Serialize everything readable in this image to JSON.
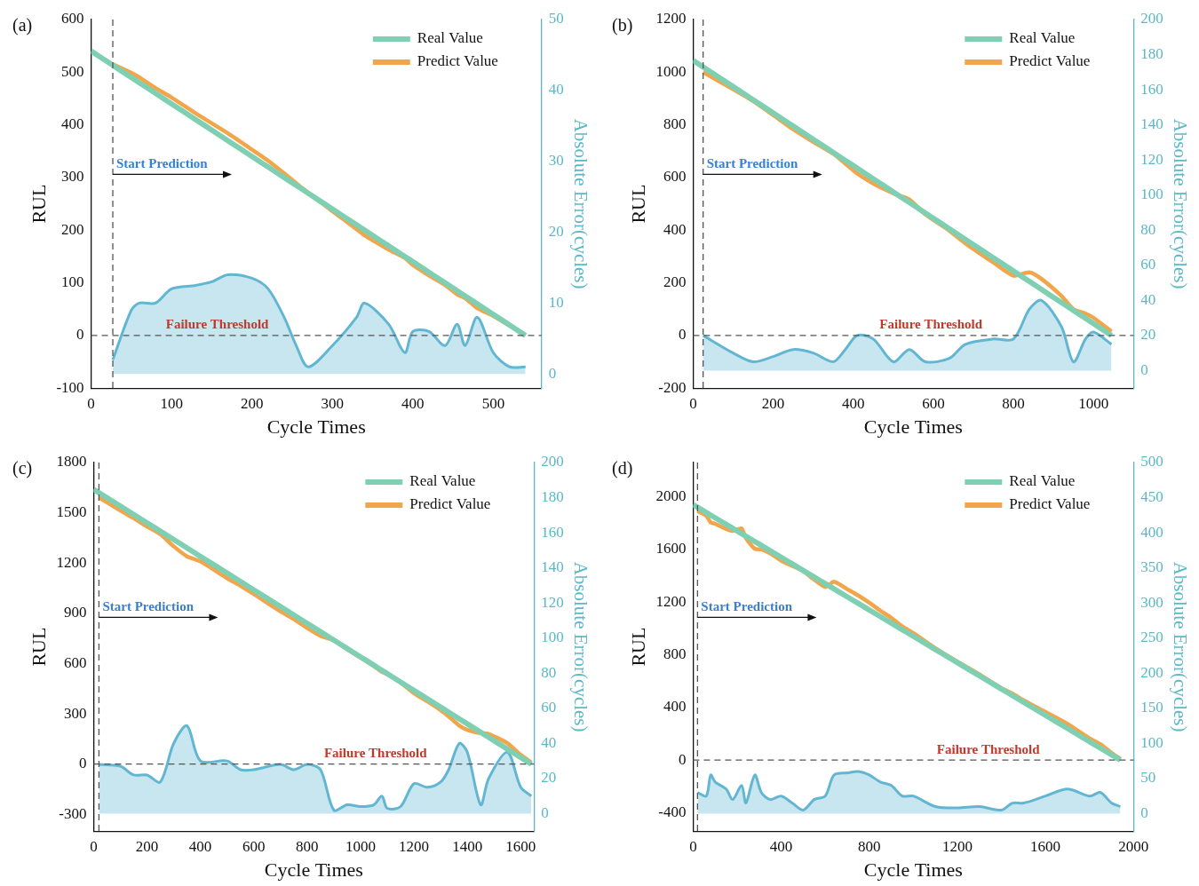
{
  "chart_data": [
    {
      "type": "line",
      "label": "(a)",
      "x_label": "Cycle Times",
      "y_label": "RUL",
      "y2_label": "Absolute Error(cycles)",
      "legend": "upper right",
      "grid": false,
      "xlim": [
        0,
        560
      ],
      "xticks": [
        0,
        100,
        200,
        300,
        400,
        500
      ],
      "ylim": [
        -100,
        600
      ],
      "yticks": [
        -100,
        0,
        100,
        200,
        300,
        400,
        500,
        600
      ],
      "y2lim": [
        -2,
        50
      ],
      "y2ticks": [
        0,
        10,
        20,
        30,
        40,
        50
      ],
      "start_prediction": {
        "x": 27,
        "label": "Start Prediction"
      },
      "failure_threshold": {
        "y": 0,
        "label": "Failure Threshold"
      },
      "x": [
        0,
        27,
        50,
        60,
        80,
        100,
        130,
        150,
        170,
        200,
        220,
        240,
        255,
        270,
        300,
        330,
        340,
        370,
        390,
        400,
        420,
        440,
        455,
        465,
        480,
        500,
        520,
        540
      ],
      "series": [
        {
          "name": "Real Value",
          "color": "#7fd0b2",
          "values": [
            540,
            513,
            490,
            480,
            460,
            440,
            410,
            390,
            370,
            340,
            320,
            300,
            285,
            270,
            240,
            210,
            200,
            170,
            150,
            140,
            120,
            100,
            85,
            75,
            60,
            40,
            20,
            0
          ]
        },
        {
          "name": "Predict Value",
          "color": "#f2a54a",
          "values": [
            null,
            515,
            499,
            490,
            470,
            452,
            422,
            403,
            384,
            353,
            332,
            308,
            289,
            271,
            236,
            202,
            190,
            163,
            147,
            134,
            114,
            96,
            78,
            71,
            52,
            37,
            19,
            1
          ]
        },
        {
          "type": "area",
          "axis": "y2",
          "color": "#62b6d2",
          "values": [
            null,
            2,
            9,
            10,
            10,
            12,
            12.5,
            13,
            14,
            13.5,
            12,
            8,
            4,
            1,
            4,
            8,
            10,
            7,
            3,
            6,
            6,
            4,
            7,
            4,
            8,
            3,
            1,
            1
          ]
        }
      ]
    },
    {
      "type": "line",
      "label": "(b)",
      "x_label": "Cycle Times",
      "y_label": "RUL",
      "y2_label": "Absolute Error(cycles)",
      "legend": "upper right",
      "grid": false,
      "xlim": [
        0,
        1100
      ],
      "xticks": [
        0,
        200,
        400,
        600,
        800,
        1000
      ],
      "ylim": [
        -200,
        1200
      ],
      "yticks": [
        -200,
        0,
        200,
        400,
        600,
        800,
        1000,
        1200
      ],
      "y2lim": [
        -10,
        200
      ],
      "y2ticks": [
        0,
        20,
        40,
        60,
        80,
        100,
        120,
        140,
        160,
        180,
        200
      ],
      "start_prediction": {
        "x": 25,
        "label": "Start Prediction"
      },
      "failure_threshold": {
        "y": 0,
        "label": "Failure Threshold"
      },
      "x": [
        0,
        25,
        100,
        150,
        200,
        250,
        300,
        350,
        380,
        410,
        450,
        500,
        540,
        580,
        640,
        680,
        750,
        800,
        840,
        870,
        920,
        950,
        980,
        1000,
        1045
      ],
      "series": [
        {
          "name": "Real Value",
          "color": "#7fd0b2",
          "values": [
            1045,
            1020,
            945,
            895,
            845,
            795,
            745,
            695,
            665,
            635,
            595,
            545,
            505,
            465,
            405,
            365,
            295,
            245,
            205,
            175,
            125,
            95,
            65,
            45,
            0
          ]
        },
        {
          "name": "Predict Value",
          "color": "#f2a54a",
          "values": [
            null,
            1000,
            935,
            890,
            837,
            783,
            735,
            690,
            653,
            615,
            577,
            540,
            517,
            460,
            398,
            350,
            277,
            227,
            240,
            215,
            150,
            100,
            83,
            67,
            15
          ]
        },
        {
          "type": "area",
          "axis": "y2",
          "color": "#62b6d2",
          "values": [
            null,
            20,
            10,
            5,
            8,
            12,
            10,
            5,
            12,
            20,
            18,
            5,
            12,
            5,
            7,
            15,
            18,
            18,
            35,
            40,
            25,
            5,
            18,
            22,
            15
          ]
        }
      ]
    },
    {
      "type": "line",
      "label": "(c)",
      "x_label": "Cycle Times",
      "y_label": "RUL",
      "y2_label": "Absolute Error(cycles)",
      "legend": "upper right",
      "grid": false,
      "xlim": [
        0,
        1650
      ],
      "xticks": [
        0,
        200,
        400,
        600,
        800,
        1000,
        1200,
        1400,
        1600
      ],
      "ylim": [
        -400,
        1800
      ],
      "yticks": [
        -300,
        0,
        300,
        600,
        900,
        1200,
        1500,
        1800
      ],
      "y2lim": [
        -10,
        200
      ],
      "y2ticks": [
        0,
        20,
        40,
        60,
        80,
        100,
        120,
        140,
        160,
        180,
        200
      ],
      "start_prediction": {
        "x": 20,
        "label": "Start Prediction"
      },
      "failure_threshold": {
        "y": 0,
        "label": "Failure Threshold"
      },
      "x": [
        0,
        20,
        100,
        150,
        200,
        250,
        300,
        350,
        400,
        500,
        550,
        600,
        700,
        750,
        800,
        850,
        900,
        950,
        1000,
        1050,
        1080,
        1100,
        1150,
        1200,
        1250,
        1300,
        1330,
        1370,
        1400,
        1450,
        1480,
        1550,
        1600,
        1640
      ],
      "series": [
        {
          "name": "Real Value",
          "color": "#7fd0b2",
          "values": [
            1640,
            1620,
            1540,
            1490,
            1440,
            1390,
            1340,
            1290,
            1240,
            1140,
            1090,
            1040,
            940,
            890,
            840,
            790,
            740,
            690,
            640,
            590,
            560,
            540,
            490,
            440,
            390,
            340,
            310,
            270,
            240,
            190,
            160,
            90,
            40,
            0
          ]
        },
        {
          "name": "Predict Value",
          "color": "#f2a54a",
          "values": [
            null,
            1592,
            1513,
            1468,
            1418,
            1372,
            1300,
            1240,
            1210,
            1110,
            1065,
            1015,
            912,
            865,
            812,
            765,
            738,
            685,
            636,
            585,
            550,
            537,
            486,
            423,
            375,
            322,
            285,
            230,
            205,
            185,
            180,
            125,
            55,
            10
          ]
        },
        {
          "type": "area",
          "axis": "y2",
          "color": "#62b6d2",
          "values": [
            null,
            28,
            27,
            22,
            22,
            18,
            40,
            50,
            30,
            30,
            25,
            25,
            28,
            25,
            28,
            25,
            2,
            5,
            4,
            5,
            10,
            3,
            4,
            17,
            15,
            18,
            25,
            40,
            35,
            5,
            20,
            35,
            15,
            10
          ]
        }
      ]
    },
    {
      "type": "line",
      "label": "(d)",
      "x_label": "Cycle Times",
      "y_label": "RUL",
      "y2_label": "Absolute Error(cycles)",
      "legend": "upper right",
      "grid": false,
      "xlim": [
        0,
        2000
      ],
      "xticks": [
        0,
        400,
        800,
        1200,
        1600,
        2000
      ],
      "ylim": [
        -540,
        2260
      ],
      "yticks": [
        -400,
        0,
        400,
        800,
        1200,
        1600,
        2000
      ],
      "y2lim": [
        -25,
        500
      ],
      "y2ticks": [
        0,
        50,
        100,
        150,
        200,
        250,
        300,
        350,
        400,
        450,
        500
      ],
      "start_prediction": {
        "x": 20,
        "label": "Start Prediction"
      },
      "failure_threshold": {
        "y": 0,
        "label": "Failure Threshold"
      },
      "x": [
        0,
        20,
        60,
        80,
        100,
        150,
        180,
        220,
        240,
        280,
        310,
        350,
        400,
        450,
        500,
        550,
        600,
        640,
        700,
        750,
        800,
        850,
        900,
        950,
        1000,
        1100,
        1200,
        1300,
        1400,
        1450,
        1500,
        1600,
        1700,
        1800,
        1850,
        1900,
        1940
      ],
      "series": [
        {
          "name": "Real Value",
          "color": "#7fd0b2",
          "values": [
            1940,
            1920,
            1880,
            1860,
            1840,
            1790,
            1760,
            1720,
            1700,
            1660,
            1630,
            1590,
            1540,
            1490,
            1440,
            1390,
            1340,
            1300,
            1240,
            1190,
            1140,
            1090,
            1040,
            990,
            940,
            840,
            740,
            640,
            540,
            490,
            440,
            340,
            240,
            140,
            90,
            40,
            0
          ]
        },
        {
          "name": "Predict Value",
          "color": "#f2a54a",
          "values": [
            null,
            1890,
            1855,
            1805,
            1795,
            1755,
            1740,
            1760,
            1685,
            1605,
            1600,
            1570,
            1515,
            1475,
            1435,
            1370,
            1315,
            1355,
            1298,
            1250,
            1195,
            1135,
            1080,
            1015,
            965,
            850,
            748,
            650,
            545,
            505,
            455,
            365,
            275,
            165,
            120,
            55,
            10
          ]
        },
        {
          "type": "area",
          "axis": "y2",
          "color": "#62b6d2",
          "values": [
            null,
            30,
            25,
            55,
            45,
            35,
            20,
            40,
            15,
            55,
            30,
            20,
            25,
            15,
            5,
            20,
            25,
            55,
            58,
            60,
            55,
            45,
            40,
            25,
            25,
            10,
            8,
            10,
            5,
            15,
            15,
            25,
            35,
            25,
            30,
            15,
            10
          ]
        }
      ]
    }
  ]
}
